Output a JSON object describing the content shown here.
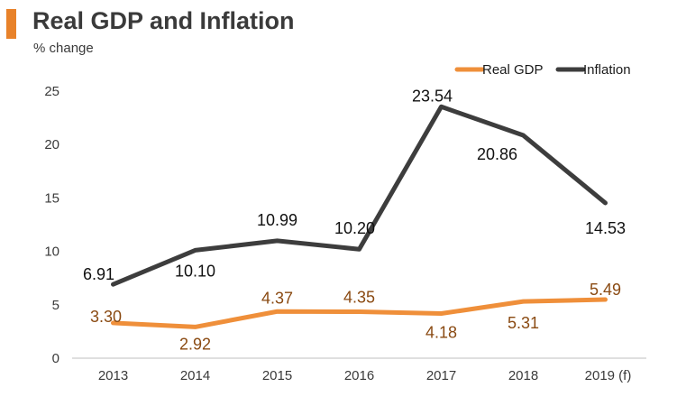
{
  "chart_data": {
    "type": "line",
    "title": "Real GDP and Inflation",
    "subtitle": "% change",
    "categories": [
      "2013",
      "2014",
      "2015",
      "2016",
      "2017",
      "2018",
      "2019 (f)"
    ],
    "ylim": [
      0,
      25
    ],
    "yticks": [
      "0",
      "5",
      "10",
      "15",
      "20",
      "25"
    ],
    "legend_position": "top-right",
    "grid": false,
    "series": [
      {
        "name": "Real GDP",
        "color": "#ef8f3a",
        "label_color": "#8a4a12",
        "values": [
          3.3,
          2.92,
          4.37,
          4.35,
          4.18,
          5.31,
          5.49
        ],
        "labels": [
          "3.30",
          "2.92",
          "4.37",
          "4.35",
          "4.18",
          "5.31",
          "5.49"
        ]
      },
      {
        "name": "Inflation",
        "color": "#3d3d3d",
        "label_color": "#111111",
        "values": [
          6.91,
          10.1,
          10.99,
          10.2,
          23.54,
          20.86,
          14.53
        ],
        "labels": [
          "6.91",
          "10.10",
          "10.99",
          "10.20",
          "23.54",
          "20.86",
          "14.53"
        ]
      }
    ]
  }
}
